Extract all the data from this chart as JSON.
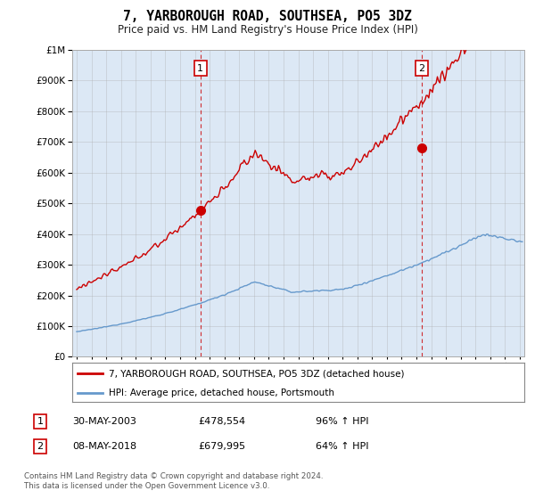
{
  "title": "7, YARBOROUGH ROAD, SOUTHSEA, PO5 3DZ",
  "subtitle": "Price paid vs. HM Land Registry's House Price Index (HPI)",
  "legend_label_red": "7, YARBOROUGH ROAD, SOUTHSEA, PO5 3DZ (detached house)",
  "legend_label_blue": "HPI: Average price, detached house, Portsmouth",
  "sale1_label": "1",
  "sale1_date": "30-MAY-2003",
  "sale1_price": "£478,554",
  "sale1_hpi": "96% ↑ HPI",
  "sale1_year": 2003.38,
  "sale1_value": 478554,
  "sale2_label": "2",
  "sale2_date": "08-MAY-2018",
  "sale2_price": "£679,995",
  "sale2_hpi": "64% ↑ HPI",
  "sale2_year": 2018.35,
  "sale2_value": 679995,
  "footer_line1": "Contains HM Land Registry data © Crown copyright and database right 2024.",
  "footer_line2": "This data is licensed under the Open Government Licence v3.0.",
  "ylim_max": 1000000,
  "ylim_min": 0,
  "xlim_min": 1994.7,
  "xlim_max": 2025.3,
  "red_color": "#cc0000",
  "blue_color": "#6699cc",
  "bg_fill_color": "#dce8f5",
  "dashed_red": "#cc0000",
  "sale_marker_color": "#cc0000",
  "sale_marker_size": 7,
  "background_color": "#ffffff",
  "grid_color": "#aaaaaa"
}
